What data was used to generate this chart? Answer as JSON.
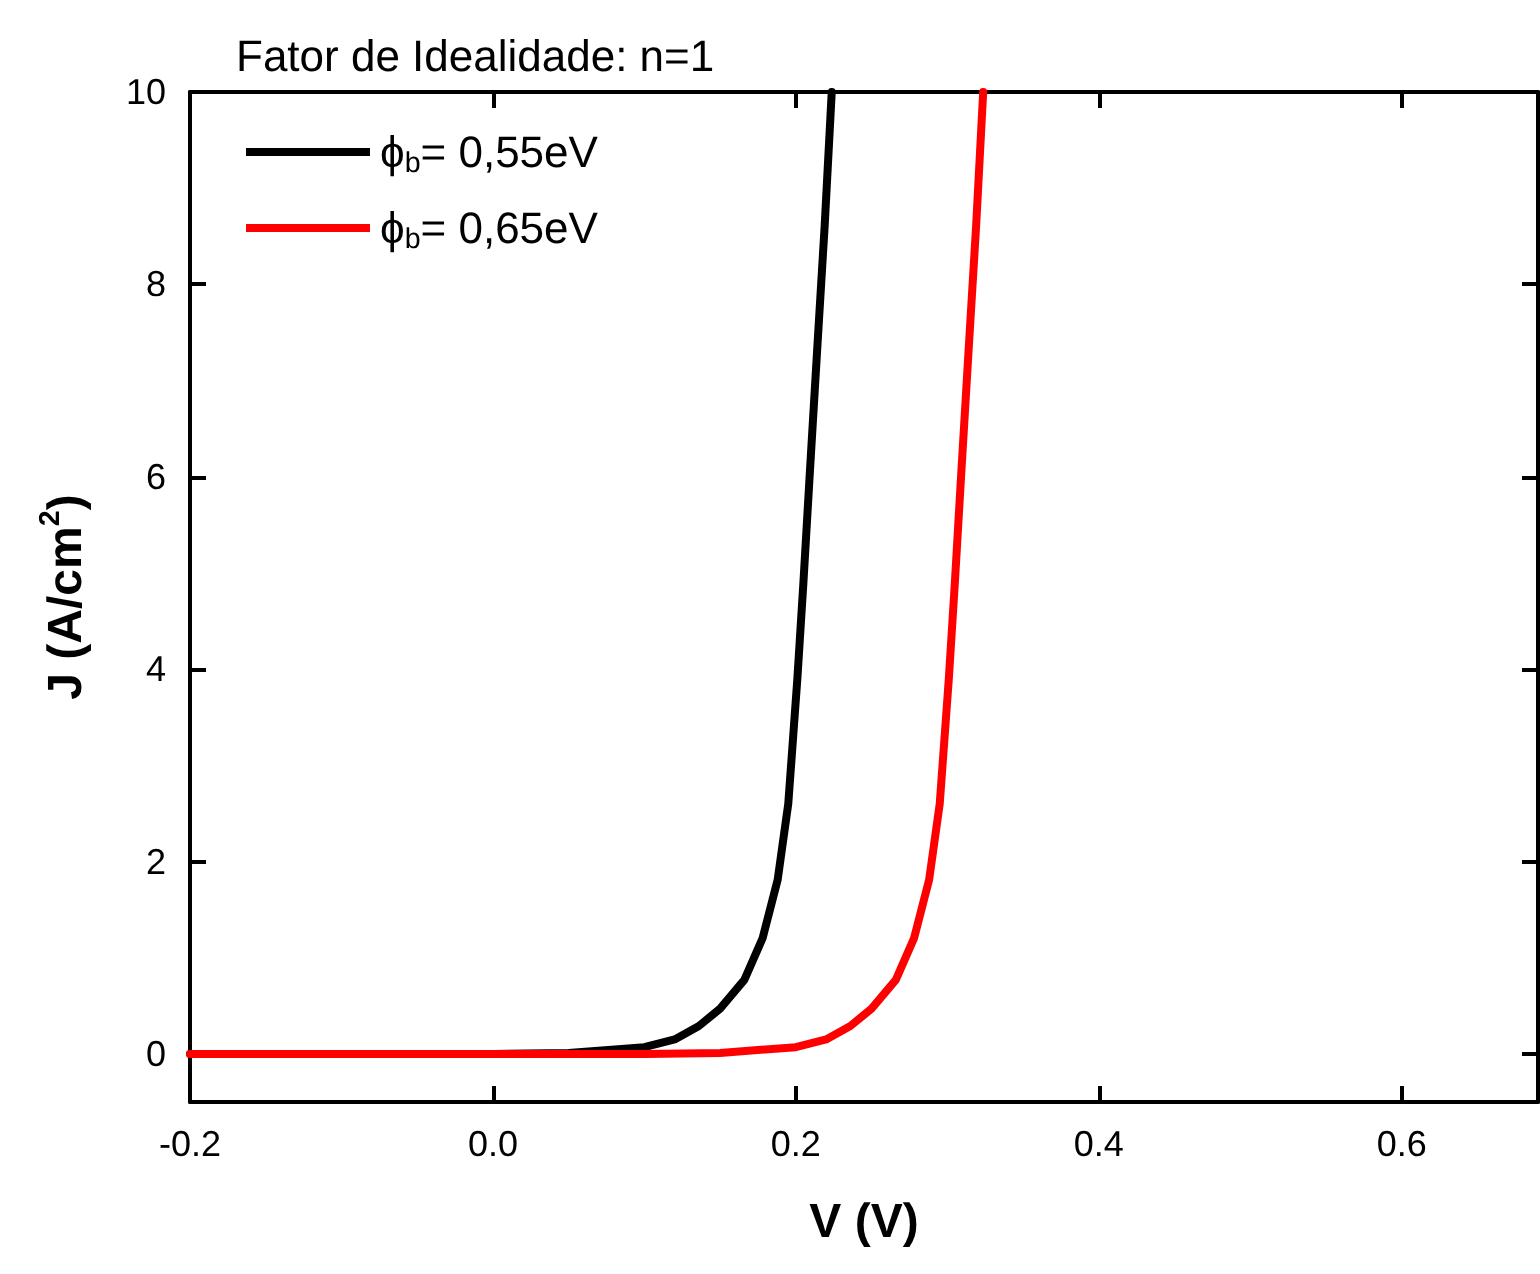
{
  "chart_data": {
    "type": "line",
    "title": "Fator de Idealidade: n=1",
    "xlabel": "V (V)",
    "ylabel": "J (A/cm$^{2}$)",
    "xlim": [
      -0.2,
      0.69
    ],
    "xticks": [
      -0.2,
      {
        "value": 0,
        "label": "0.0"
      },
      0.2,
      0.4,
      0.6
    ],
    "ylim": [
      -0.5,
      10
    ],
    "yticks": [
      0,
      2,
      4,
      6,
      8,
      10
    ],
    "series": [
      {
        "name": "ϕ$_{b}$= 0,55eV",
        "color": "#000000",
        "x": [
          -0.2,
          0,
          0.05,
          0.1,
          0.12,
          0.136,
          0.15,
          0.166,
          0.178,
          0.188,
          0.195,
          0.201,
          0.205,
          0.209,
          0.214,
          0.219,
          0.2237
        ],
        "values": [
          0,
          0,
          0.01,
          0.07,
          0.15,
          0.29,
          0.47,
          0.77,
          1.2,
          1.81,
          2.6,
          3.9,
          4.9,
          5.98,
          7.3,
          8.6,
          10
        ]
      },
      {
        "name": "ϕ$_{b}$= 0,65eV",
        "color": "#ff0000",
        "x": [
          -0.2,
          0.1,
          0.15,
          0.2,
          0.22,
          0.236,
          0.25,
          0.266,
          0.278,
          0.288,
          0.295,
          0.301,
          0.305,
          0.309,
          0.314,
          0.319,
          0.3237
        ],
        "values": [
          0,
          0,
          0.01,
          0.07,
          0.15,
          0.29,
          0.47,
          0.77,
          1.2,
          1.81,
          2.6,
          3.9,
          4.9,
          5.98,
          7.3,
          8.6,
          10
        ]
      }
    ],
    "legend": "top left",
    "grid": false,
    "marker": "none",
    "line_style": "solid"
  }
}
